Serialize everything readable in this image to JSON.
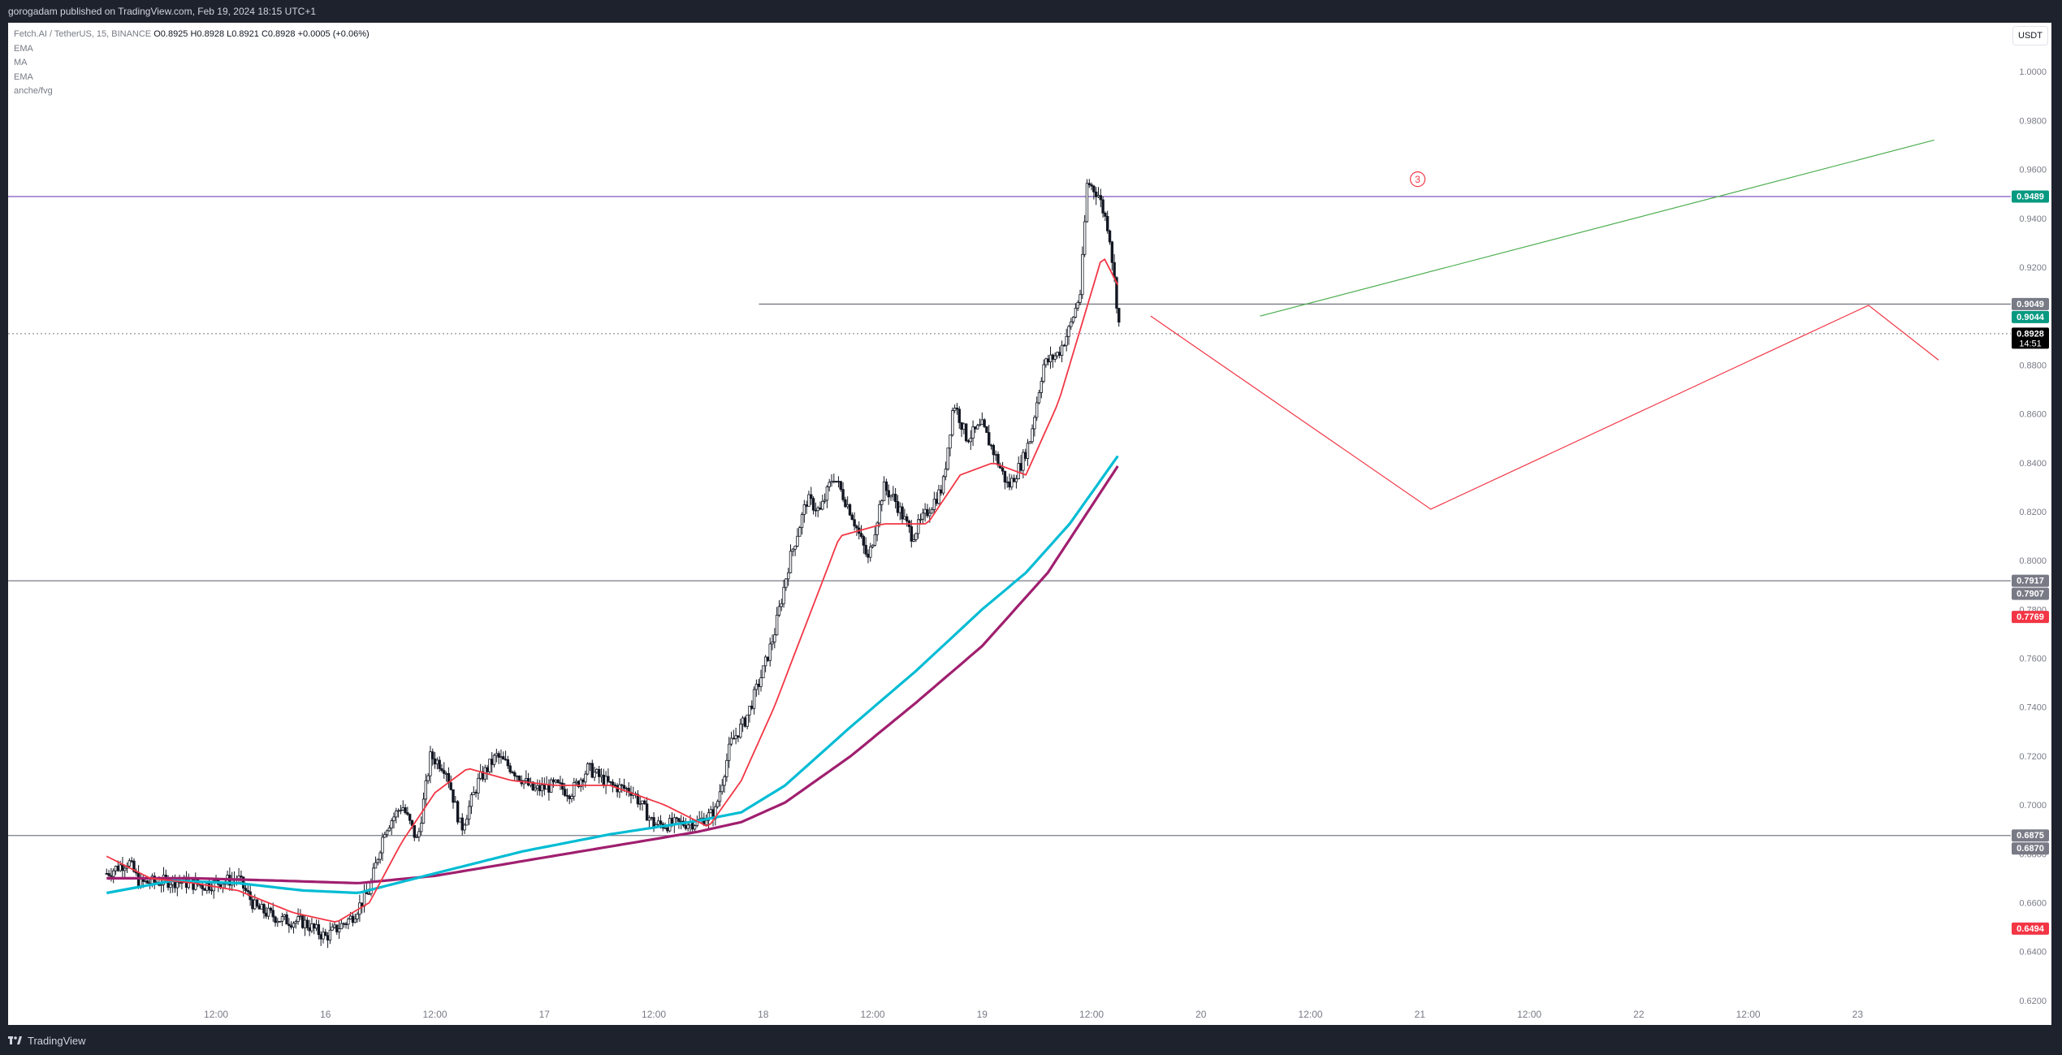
{
  "header": {
    "publish_line": "gorogadam published on TradingView.com, Feb 19, 2024 18:15 UTC+1"
  },
  "legend": {
    "symbol": "Fetch.AI / TetherUS, 15, BINANCE",
    "ohlc": "O0.8925  H0.8928  L0.8921  C0.8928  +0.0005 (+0.06%)",
    "indicators": [
      "EMA",
      "MA",
      "EMA",
      "anche/fvg"
    ]
  },
  "currency_button": "USDT",
  "footer": {
    "brand": "TradingView"
  },
  "colors": {
    "background": "#ffffff",
    "candle": "#131722",
    "ema_fast": "#f23645",
    "ema_cyan": "#00bcd4",
    "ma_magenta": "#a01f6f",
    "resistance_line": "#7e57c2",
    "projection_red": "#f23645",
    "projection_green": "#4caf50",
    "badge_green": "#089981",
    "badge_gray": "#787b86",
    "badge_red": "#f23645",
    "badge_black": "#000000"
  },
  "chart_data": {
    "type": "candlestick",
    "ylim": [
      0.61,
      1.02
    ],
    "y_ticks": [
      "1.0000",
      "0.9800",
      "0.9600",
      "0.9400",
      "0.9200",
      "0.9000",
      "0.8800",
      "0.8600",
      "0.8400",
      "0.8200",
      "0.8000",
      "0.7800",
      "0.7600",
      "0.7400",
      "0.7200",
      "0.7000",
      "0.6800",
      "0.6600",
      "0.6400",
      "0.6200"
    ],
    "x_ticks": [
      {
        "label": "12:00",
        "day": 0.5
      },
      {
        "label": "16",
        "day": 1.0
      },
      {
        "label": "12:00",
        "day": 1.5
      },
      {
        "label": "17",
        "day": 2.0
      },
      {
        "label": "12:00",
        "day": 2.5
      },
      {
        "label": "18",
        "day": 3.0
      },
      {
        "label": "12:00",
        "day": 3.5
      },
      {
        "label": "19",
        "day": 4.0
      },
      {
        "label": "12:00",
        "day": 4.5
      },
      {
        "label": "20",
        "day": 5.0
      },
      {
        "label": "12:00",
        "day": 5.5
      },
      {
        "label": "21",
        "day": 6.0
      },
      {
        "label": "12:00",
        "day": 6.5
      },
      {
        "label": "22",
        "day": 7.0
      },
      {
        "label": "12:00",
        "day": 7.5
      },
      {
        "label": "23",
        "day": 8.0
      }
    ],
    "x_range_days": [
      -0.45,
      8.7
    ],
    "last_candle_day": 4.63,
    "close_anchors": [
      [
        0.0,
        0.672
      ],
      [
        0.1,
        0.677
      ],
      [
        0.15,
        0.668
      ],
      [
        0.3,
        0.669
      ],
      [
        0.45,
        0.667
      ],
      [
        0.6,
        0.67
      ],
      [
        0.68,
        0.658
      ],
      [
        0.8,
        0.653
      ],
      [
        0.9,
        0.652
      ],
      [
        1.0,
        0.646
      ],
      [
        1.12,
        0.654
      ],
      [
        1.2,
        0.665
      ],
      [
        1.27,
        0.69
      ],
      [
        1.35,
        0.7
      ],
      [
        1.42,
        0.685
      ],
      [
        1.48,
        0.72
      ],
      [
        1.55,
        0.715
      ],
      [
        1.62,
        0.69
      ],
      [
        1.7,
        0.71
      ],
      [
        1.78,
        0.72
      ],
      [
        1.85,
        0.715
      ],
      [
        1.95,
        0.706
      ],
      [
        2.05,
        0.708
      ],
      [
        2.12,
        0.705
      ],
      [
        2.2,
        0.715
      ],
      [
        2.3,
        0.708
      ],
      [
        2.4,
        0.706
      ],
      [
        2.5,
        0.692
      ],
      [
        2.58,
        0.692
      ],
      [
        2.7,
        0.693
      ],
      [
        2.78,
        0.697
      ],
      [
        2.85,
        0.725
      ],
      [
        2.92,
        0.735
      ],
      [
        3.0,
        0.755
      ],
      [
        3.05,
        0.77
      ],
      [
        3.12,
        0.8
      ],
      [
        3.2,
        0.825
      ],
      [
        3.26,
        0.82
      ],
      [
        3.32,
        0.835
      ],
      [
        3.4,
        0.82
      ],
      [
        3.48,
        0.8
      ],
      [
        3.55,
        0.83
      ],
      [
        3.6,
        0.825
      ],
      [
        3.68,
        0.81
      ],
      [
        3.75,
        0.82
      ],
      [
        3.82,
        0.83
      ],
      [
        3.87,
        0.865
      ],
      [
        3.93,
        0.85
      ],
      [
        4.0,
        0.855
      ],
      [
        4.05,
        0.845
      ],
      [
        4.12,
        0.83
      ],
      [
        4.18,
        0.84
      ],
      [
        4.22,
        0.85
      ],
      [
        4.28,
        0.88
      ],
      [
        4.35,
        0.885
      ],
      [
        4.4,
        0.895
      ],
      [
        4.45,
        0.91
      ],
      [
        4.48,
        0.955
      ],
      [
        4.53,
        0.95
      ],
      [
        4.58,
        0.935
      ],
      [
        4.63,
        0.8928
      ]
    ],
    "ema_fast_anchors": [
      [
        0.0,
        0.679
      ],
      [
        0.2,
        0.67
      ],
      [
        0.4,
        0.668
      ],
      [
        0.6,
        0.665
      ],
      [
        0.85,
        0.656
      ],
      [
        1.05,
        0.652
      ],
      [
        1.2,
        0.66
      ],
      [
        1.35,
        0.685
      ],
      [
        1.5,
        0.705
      ],
      [
        1.65,
        0.715
      ],
      [
        1.85,
        0.71
      ],
      [
        2.05,
        0.708
      ],
      [
        2.3,
        0.708
      ],
      [
        2.55,
        0.7
      ],
      [
        2.75,
        0.691
      ],
      [
        2.9,
        0.71
      ],
      [
        3.05,
        0.74
      ],
      [
        3.2,
        0.775
      ],
      [
        3.35,
        0.81
      ],
      [
        3.55,
        0.815
      ],
      [
        3.75,
        0.815
      ],
      [
        3.9,
        0.835
      ],
      [
        4.05,
        0.84
      ],
      [
        4.2,
        0.835
      ],
      [
        4.35,
        0.865
      ],
      [
        4.45,
        0.895
      ],
      [
        4.55,
        0.925
      ],
      [
        4.63,
        0.911
      ]
    ],
    "ema_cyan_anchors": [
      [
        0.0,
        0.664
      ],
      [
        0.3,
        0.669
      ],
      [
        0.6,
        0.668
      ],
      [
        0.9,
        0.665
      ],
      [
        1.15,
        0.664
      ],
      [
        1.5,
        0.672
      ],
      [
        1.9,
        0.681
      ],
      [
        2.3,
        0.688
      ],
      [
        2.7,
        0.6935
      ],
      [
        2.9,
        0.697
      ],
      [
        3.1,
        0.708
      ],
      [
        3.4,
        0.732
      ],
      [
        3.7,
        0.755
      ],
      [
        4.0,
        0.78
      ],
      [
        4.2,
        0.795
      ],
      [
        4.4,
        0.815
      ],
      [
        4.63,
        0.844
      ]
    ],
    "ma_magenta_anchors": [
      [
        0.0,
        0.67
      ],
      [
        0.4,
        0.67
      ],
      [
        0.8,
        0.669
      ],
      [
        1.15,
        0.668
      ],
      [
        1.5,
        0.671
      ],
      [
        1.9,
        0.677
      ],
      [
        2.3,
        0.683
      ],
      [
        2.7,
        0.689
      ],
      [
        2.9,
        0.693
      ],
      [
        3.1,
        0.701
      ],
      [
        3.4,
        0.72
      ],
      [
        3.7,
        0.742
      ],
      [
        4.0,
        0.765
      ],
      [
        4.3,
        0.795
      ],
      [
        4.63,
        0.84
      ]
    ],
    "horizontal_lines": [
      {
        "price": 0.9489,
        "color": "#7e57c2",
        "style": "solid",
        "from_day": -0.45
      },
      {
        "price": 0.9049,
        "color": "#787b86",
        "style": "solid",
        "from_day": 2.98
      },
      {
        "price": 0.8928,
        "color": "#787b86",
        "style": "dotted",
        "from_day": -0.45
      },
      {
        "price": 0.7917,
        "color": "#787b86",
        "style": "solid",
        "from_day": -0.45
      },
      {
        "price": 0.6875,
        "color": "#787b86",
        "style": "solid",
        "from_day": -0.45
      }
    ],
    "projection_red": [
      [
        4.77,
        0.9
      ],
      [
        6.05,
        0.821
      ],
      [
        8.05,
        0.9044
      ],
      [
        8.37,
        0.882
      ]
    ],
    "projection_green": [
      [
        5.27,
        0.9
      ],
      [
        8.35,
        0.972
      ]
    ],
    "annotations": [
      {
        "text": "3",
        "day": 5.99,
        "price": 0.956,
        "color": "#f23645"
      }
    ],
    "price_badges": [
      {
        "text": "0.9489",
        "price": 0.9489,
        "color": "#089981"
      },
      {
        "text": "0.9049",
        "price": 0.9049,
        "color": "#787b86"
      },
      {
        "text": "0.9044",
        "price": 0.9044,
        "color": "#089981"
      },
      {
        "text": "0.8928",
        "price": 0.8928,
        "color": "#000000",
        "sub": "14:51"
      },
      {
        "text": "0.7917",
        "price": 0.7917,
        "color": "#787b86"
      },
      {
        "text": "0.7907",
        "price": 0.7907,
        "color": "#787b86"
      },
      {
        "text": "0.7769",
        "price": 0.7769,
        "color": "#f23645"
      },
      {
        "text": "0.6875",
        "price": 0.6875,
        "color": "#787b86"
      },
      {
        "text": "0.6870",
        "price": 0.687,
        "color": "#787b86"
      },
      {
        "text": "0.6494",
        "price": 0.6494,
        "color": "#f23645"
      }
    ]
  }
}
